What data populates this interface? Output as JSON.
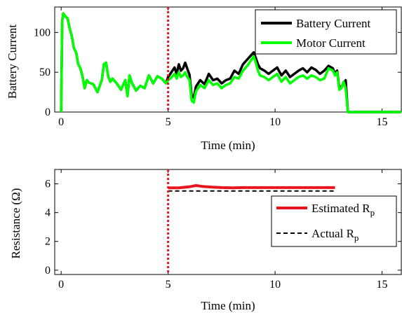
{
  "chart_data": [
    {
      "type": "line",
      "xlabel": "Time (min)",
      "ylabel": "Battery Current",
      "xlim": [
        -0.3,
        15.9
      ],
      "ylim": [
        0,
        132
      ],
      "xticks": [
        "0",
        "5",
        "10",
        "15"
      ],
      "yticks": [
        "0",
        "50",
        "100"
      ],
      "legend_position": "top-right",
      "marker_line_x": 5,
      "colors": {
        "battery": "#000000",
        "motor": "#00ff00",
        "marker": "#e8141e"
      },
      "series": [
        {
          "name": "Battery Current",
          "x": [
            0,
            0.05,
            0.1,
            0.2,
            0.3,
            0.4,
            0.5,
            0.6,
            0.7,
            0.8,
            0.9,
            1.0,
            1.1,
            1.2,
            1.3,
            1.5,
            1.7,
            1.9,
            2.0,
            2.1,
            2.2,
            2.3,
            2.4,
            2.6,
            2.8,
            3.0,
            3.1,
            3.2,
            3.3,
            3.5,
            3.7,
            3.9,
            4.1,
            4.3,
            4.5,
            4.7,
            4.9,
            5.0,
            5.1,
            5.3,
            5.4,
            5.5,
            5.6,
            5.7,
            5.8,
            5.9,
            6.0,
            6.1,
            6.2,
            6.3,
            6.5,
            6.7,
            6.9,
            7.1,
            7.3,
            7.5,
            7.7,
            7.9,
            8.1,
            8.3,
            8.5,
            8.7,
            8.9,
            9.0,
            9.1,
            9.2,
            9.3,
            9.5,
            9.7,
            9.9,
            10.1,
            10.3,
            10.5,
            10.7,
            10.9,
            11.1,
            11.3,
            11.5,
            11.7,
            11.9,
            12.1,
            12.3,
            12.5,
            12.7,
            12.8,
            12.9,
            13.0,
            13.1,
            13.2,
            13.3,
            13.4,
            13.5,
            13.6,
            15.9
          ],
          "y": [
            0,
            115,
            124,
            120,
            118,
            105,
            95,
            80,
            75,
            60,
            55,
            45,
            30,
            40,
            37,
            35,
            25,
            40,
            60,
            62,
            45,
            38,
            42,
            36,
            28,
            40,
            20,
            46,
            37,
            27,
            33,
            30,
            46,
            36,
            45,
            42,
            36,
            44,
            48,
            56,
            48,
            60,
            52,
            55,
            62,
            54,
            47,
            20,
            18,
            32,
            40,
            35,
            48,
            40,
            42,
            36,
            40,
            42,
            52,
            48,
            60,
            66,
            72,
            75,
            68,
            60,
            55,
            52,
            48,
            52,
            56,
            46,
            52,
            44,
            48,
            52,
            55,
            50,
            56,
            53,
            48,
            52,
            58,
            55,
            48,
            52,
            30,
            32,
            35,
            40,
            0,
            0,
            0,
            0
          ]
        },
        {
          "name": "Motor Current",
          "x": [
            0,
            0.05,
            0.1,
            0.2,
            0.3,
            0.4,
            0.5,
            0.6,
            0.7,
            0.8,
            0.9,
            1.0,
            1.1,
            1.2,
            1.3,
            1.5,
            1.7,
            1.9,
            2.0,
            2.1,
            2.2,
            2.3,
            2.4,
            2.6,
            2.8,
            3.0,
            3.1,
            3.2,
            3.3,
            3.5,
            3.7,
            3.9,
            4.1,
            4.3,
            4.5,
            4.7,
            4.9,
            5.0,
            5.1,
            5.3,
            5.4,
            5.5,
            5.6,
            5.7,
            5.8,
            5.9,
            6.0,
            6.1,
            6.2,
            6.3,
            6.5,
            6.7,
            6.9,
            7.1,
            7.3,
            7.5,
            7.7,
            7.9,
            8.1,
            8.3,
            8.5,
            8.7,
            8.9,
            9.0,
            9.1,
            9.2,
            9.3,
            9.5,
            9.7,
            9.9,
            10.1,
            10.3,
            10.5,
            10.7,
            10.9,
            11.1,
            11.3,
            11.5,
            11.7,
            11.9,
            12.1,
            12.3,
            12.5,
            12.7,
            12.8,
            12.9,
            13.0,
            13.1,
            13.2,
            13.3,
            13.4,
            13.5,
            13.6,
            15.9
          ],
          "y": [
            0,
            115,
            124,
            120,
            118,
            105,
            95,
            80,
            75,
            60,
            55,
            45,
            30,
            40,
            37,
            35,
            25,
            40,
            60,
            62,
            45,
            38,
            42,
            36,
            28,
            40,
            20,
            46,
            37,
            27,
            33,
            30,
            46,
            36,
            45,
            42,
            36,
            40,
            42,
            48,
            42,
            50,
            44,
            46,
            50,
            44,
            40,
            14,
            12,
            26,
            34,
            30,
            40,
            34,
            36,
            30,
            34,
            36,
            44,
            42,
            52,
            58,
            66,
            70,
            62,
            52,
            46,
            44,
            40,
            44,
            48,
            38,
            44,
            36,
            40,
            44,
            46,
            42,
            46,
            44,
            40,
            42,
            55,
            52,
            46,
            50,
            28,
            30,
            38,
            30,
            0,
            0,
            0,
            0
          ]
        }
      ]
    },
    {
      "type": "line",
      "xlabel": "Time (min)",
      "ylabel": "Resistance (Ω)",
      "xlim": [
        -0.3,
        15.9
      ],
      "ylim": [
        -0.3,
        7
      ],
      "xticks": [
        "0",
        "5",
        "10",
        "15"
      ],
      "yticks": [
        "0",
        "2",
        "4",
        "6"
      ],
      "legend_position": "bottom-right",
      "marker_line_x": 5,
      "colors": {
        "estimated": "#e8141e",
        "actual": "#000000",
        "marker": "#e8141e"
      },
      "series": [
        {
          "name": "Estimated R",
          "name_subscript": "p",
          "x": [
            5.0,
            5.5,
            6.0,
            6.3,
            6.6,
            7.0,
            7.5,
            8.0,
            8.5,
            9.0,
            10.0,
            11.0,
            12.0,
            12.8
          ],
          "y": [
            5.72,
            5.72,
            5.8,
            5.88,
            5.82,
            5.78,
            5.74,
            5.72,
            5.74,
            5.74,
            5.74,
            5.74,
            5.74,
            5.74
          ]
        },
        {
          "name": "Actual R",
          "name_subscript": "p",
          "x": [
            5.0,
            12.8
          ],
          "y": [
            5.5,
            5.5
          ]
        }
      ]
    }
  ]
}
